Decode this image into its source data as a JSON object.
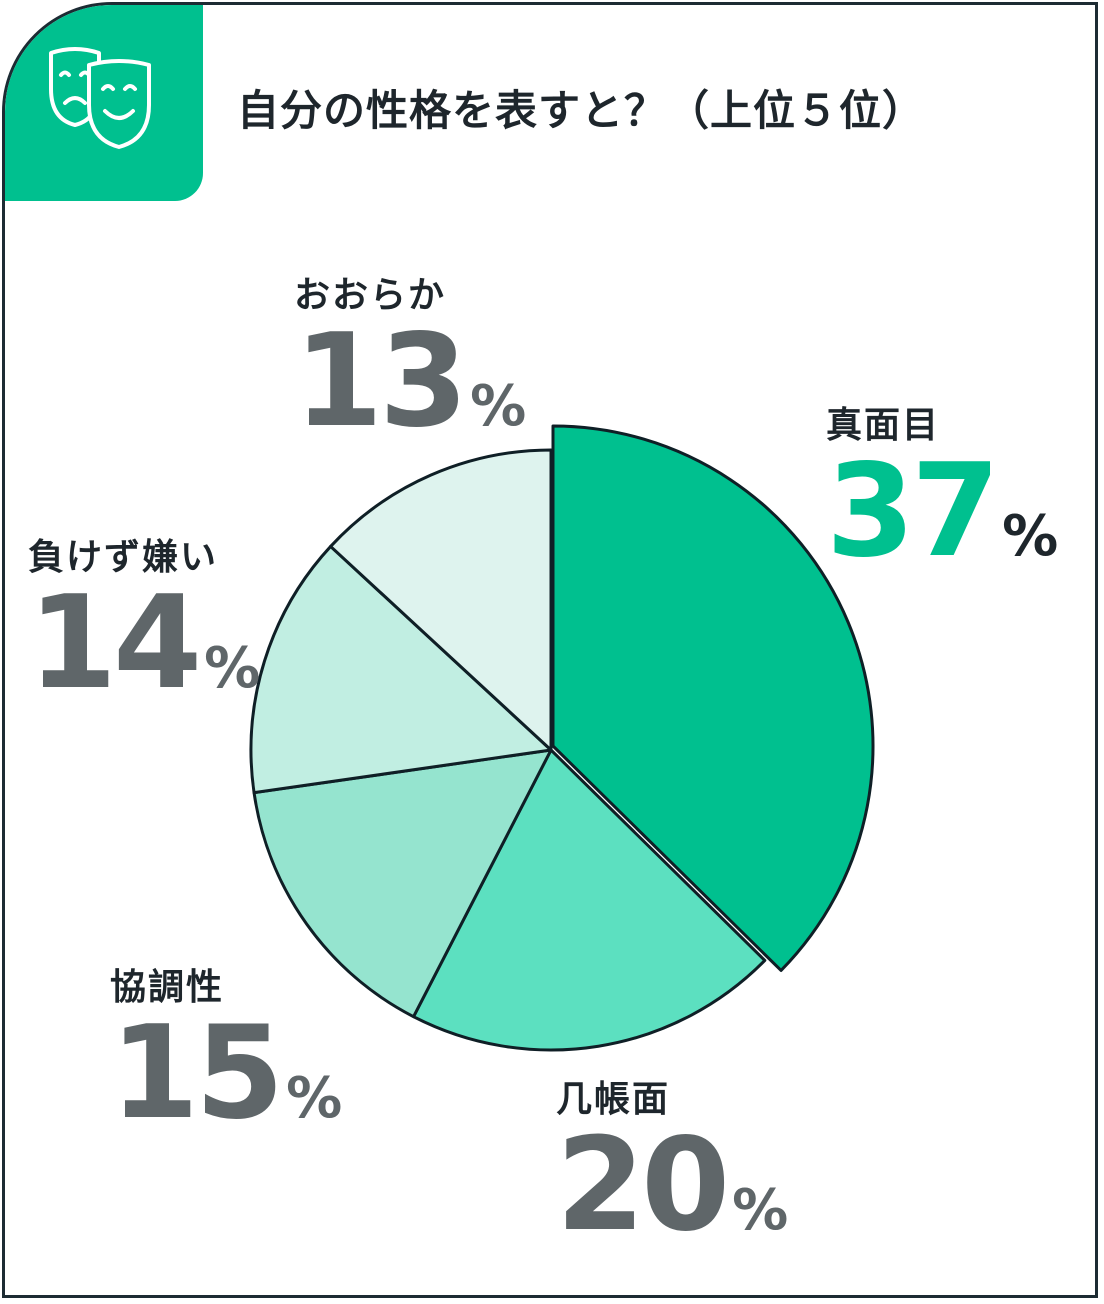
{
  "header": {
    "title": "自分の性格を表すと？（上位５位）",
    "icon": "theater-masks-icon"
  },
  "colors": {
    "accent": "#00c08f",
    "text": "#1e262c",
    "gray": "#5f6669",
    "outline": "#0f1f26",
    "slices": [
      "#00c08f",
      "#5ce0c0",
      "#95e4cf",
      "#c1eee2",
      "#def3ee"
    ]
  },
  "chart_data": {
    "type": "pie",
    "title": "自分の性格を表すと？（上位５位）",
    "slices": [
      {
        "label": "真面目",
        "value": 37,
        "unit": "%"
      },
      {
        "label": "几帳面",
        "value": 20,
        "unit": "%"
      },
      {
        "label": "協調性",
        "value": 15,
        "unit": "%"
      },
      {
        "label": "負けず嫌い",
        "value": 14,
        "unit": "%"
      },
      {
        "label": "おおらか",
        "value": 13,
        "unit": "%"
      }
    ]
  }
}
